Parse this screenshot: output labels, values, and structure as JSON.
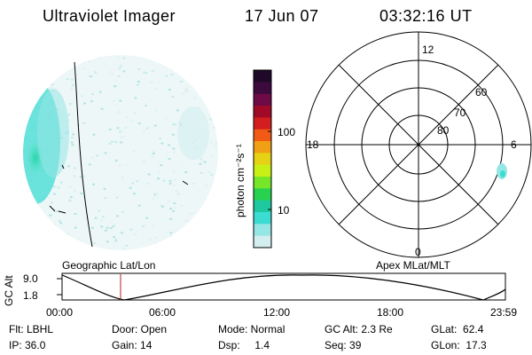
{
  "header": {
    "instrument": "Ultraviolet Imager",
    "date": "17 Jun 07",
    "time": "03:32:16 UT"
  },
  "colorbar": {
    "title": "photon cm⁻²s⁻¹",
    "tick_labels": [
      "100",
      "10"
    ],
    "colors": [
      "#1e0a28",
      "#3c0a3c",
      "#6e0a46",
      "#a00a28",
      "#d21e1e",
      "#f05a14",
      "#f0a014",
      "#e6d214",
      "#c8f014",
      "#78e628",
      "#28d250",
      "#1ec8a0",
      "#3cdcd2",
      "#96e6e6",
      "#d2eeee"
    ]
  },
  "polar_plot": {
    "mlt_labels": [
      "12",
      "18",
      "6",
      "0"
    ],
    "mlat_labels": [
      "60",
      "70",
      "80"
    ]
  },
  "timeline": {
    "left_title": "Geographic Lat/Lon",
    "right_title": "Apex MLat/MLT",
    "axis_label": "GC Alt",
    "y_ticks": [
      "9.0",
      "1.8"
    ],
    "x_ticks": [
      "00:00",
      "06:00",
      "12:00",
      "18:00",
      "23:59"
    ]
  },
  "footer": {
    "filter": "Flt: LBHL",
    "door": "Door: Open",
    "mode": "Mode: Normal",
    "gc_alt": "GC Alt: 2.3 Re",
    "glat": "GLat:  62.4",
    "ip": "IP: 36.0",
    "gain": "Gain: 14",
    "dsp": "Dsp:     1.4",
    "seq": "Seq: 39",
    "glon": "GLon:  17.3"
  }
}
